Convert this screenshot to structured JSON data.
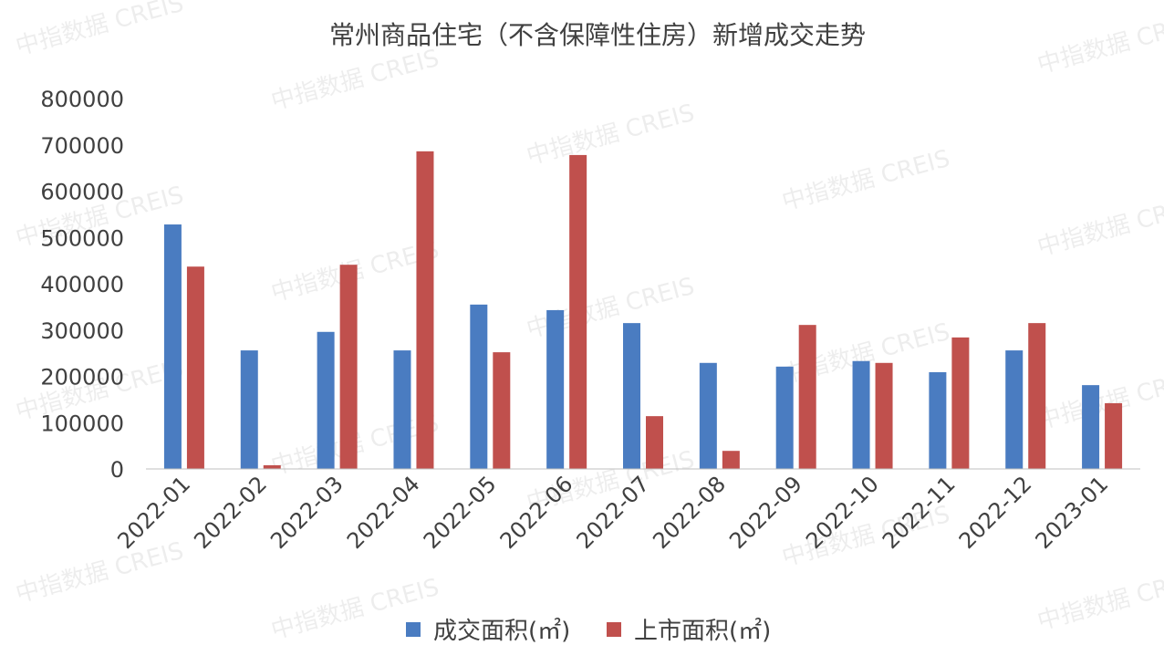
{
  "chart_data": {
    "type": "bar",
    "title": "常州商品住宅（不含保障性住房）新增成交走势",
    "xlabel": "",
    "ylabel": "",
    "ylim": [
      0,
      800000
    ],
    "yticks": [
      "0",
      "100000",
      "200000",
      "300000",
      "400000",
      "500000",
      "600000",
      "700000",
      "800000"
    ],
    "grid": false,
    "legend_position": "bottom",
    "categories": [
      "2022-01",
      "2022-02",
      "2022-03",
      "2022-04",
      "2022-05",
      "2022-06",
      "2022-07",
      "2022-08",
      "2022-09",
      "2022-10",
      "2022-11",
      "2022-12",
      "2023-01"
    ],
    "series": [
      {
        "name": "成交面积(㎡)",
        "color": "#4a7cc1",
        "values": [
          528000,
          256000,
          296000,
          256000,
          355000,
          343000,
          315000,
          229000,
          221000,
          233000,
          209000,
          256000,
          181000
        ]
      },
      {
        "name": "上市面积(㎡)",
        "color": "#c0504d",
        "values": [
          437000,
          8000,
          441000,
          686000,
          252000,
          678000,
          114000,
          39000,
          311000,
          229000,
          284000,
          315000,
          142000
        ]
      }
    ]
  },
  "watermark": "中指数据 CREIS"
}
